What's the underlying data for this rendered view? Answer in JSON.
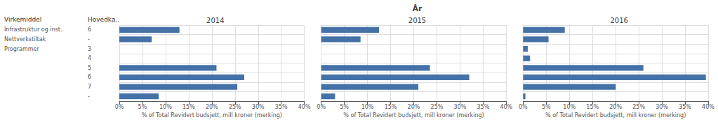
{
  "chart_data": {
    "type": "bar",
    "orientation": "horizontal",
    "title": "År",
    "categories": [
      "Infrastruktur og inst..",
      "Nettverkstiltak",
      "Programmer",
      null,
      null,
      null,
      null,
      null
    ],
    "row_labels_col2": [
      "6",
      "-",
      "3",
      "4",
      "5",
      "6",
      "7",
      "-"
    ],
    "column_headers": [
      "Virkemiddel",
      "Hovedka.."
    ],
    "xlabel": "% of Total Revidert budsjett, mill kroner (merking)",
    "series": [
      {
        "name": "2014",
        "values": [
          13.0,
          7.0,
          0.0,
          0.0,
          21.0,
          27.0,
          25.5,
          8.5
        ]
      },
      {
        "name": "2015",
        "values": [
          12.5,
          8.5,
          0.0,
          0.0,
          23.5,
          32.0,
          21.0,
          3.0
        ]
      },
      {
        "name": "2016",
        "values": [
          9.0,
          5.5,
          1.0,
          1.5,
          26.0,
          39.5,
          20.0,
          0.5
        ]
      }
    ],
    "color": "#4472a8",
    "xlim": [
      0,
      40
    ],
    "xticks": [
      {
        "value": 0,
        "label": "0%"
      },
      {
        "value": 5,
        "label": "5%"
      },
      {
        "value": 10,
        "label": "10%"
      },
      {
        "value": 15,
        "label": "15%"
      },
      {
        "value": 20,
        "label": "20%"
      },
      {
        "value": 25,
        "label": "25%"
      },
      {
        "value": 30,
        "label": "30%"
      },
      {
        "value": 35,
        "label": "35%"
      },
      {
        "value": 40,
        "label": "40%"
      }
    ],
    "grid": true
  }
}
